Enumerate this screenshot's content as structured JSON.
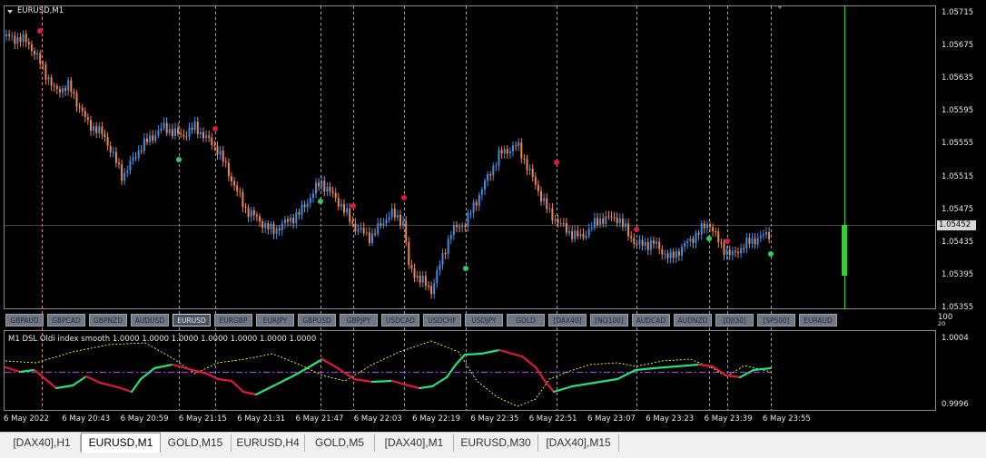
{
  "chart": {
    "symbol_title": "EURUSD,M1",
    "current_price": "1.05452",
    "price_labels": [
      "1.05715",
      "1.05675",
      "1.05635",
      "1.05595",
      "1.05555",
      "1.05515",
      "1.05475",
      "1.05435",
      "1.05395",
      "1.05355"
    ],
    "time_labels": [
      "6 May 2022",
      "6 May 20:43",
      "6 May 20:59",
      "6 May 21:15",
      "6 May 21:31",
      "6 May 21:47",
      "6 May 22:03",
      "6 May 22:19",
      "6 May 22:35",
      "6 May 22:51",
      "6 May 23:07",
      "6 May 23:23",
      "6 May 23:39",
      "6 May 23:55"
    ],
    "colors": {
      "background": "#000000",
      "bull_candle": "#3b8ee8",
      "bear_candle": "#ef8552",
      "sell_signal": "#e0173c",
      "buy_signal": "#2fc86c",
      "cyan_vline": "#3fb6ea",
      "red_vline": "#f27a7a",
      "osc_up": "#28e07a",
      "osc_down": "#e0173c",
      "osc_dots": "#ffff33",
      "signal_line": "#9a3fd8",
      "future_line": "#2bd32b"
    }
  },
  "symbol_buttons": [
    "GBPAUD",
    "GBPCAD",
    "GBPNZD",
    "AUDUSD",
    "EURUSD",
    "EURGBP",
    "EURJPY",
    "GBPUSD",
    "GBPJPY",
    "USDCAD",
    "USDCHF",
    "USDJPY",
    "GOLD",
    "[DAX40]",
    "[NQ100]",
    "AUDCAD",
    "AUDNZD",
    "[DJI30]",
    "[SP500]",
    "EURAUD"
  ],
  "active_symbol": "EURUSD",
  "indicator": {
    "title": "M1 DSL Oldi index smooth 1.0000 1.0000 1.0000 1.0000 1.0000 1.0000 1.0000",
    "scale_top": "100",
    "scale_top2": "20",
    "max_label": "1.0004",
    "min_label": "0.9996"
  },
  "tabs": [
    "[DAX40],H1",
    "EURUSD,M1",
    "GOLD,M15",
    "EURUSD,H4",
    "GOLD,M5",
    "[DAX40],M1",
    "EURUSD,M30",
    "[DAX40],M15"
  ],
  "active_tab": "EURUSD,M1"
}
